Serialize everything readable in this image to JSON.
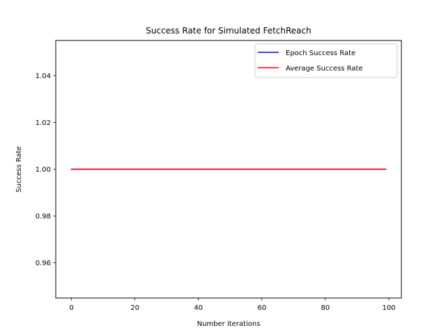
{
  "chart_data": {
    "type": "line",
    "title": "Success Rate for Simulated FetchReach",
    "xlabel": "Number iterations",
    "ylabel": "Success Rate",
    "xlim": [
      -4.95,
      103.95
    ],
    "ylim": [
      0.945,
      1.055
    ],
    "x_ticks": [
      0,
      20,
      40,
      60,
      80,
      100
    ],
    "x_tick_labels": [
      "0",
      "20",
      "40",
      "60",
      "80",
      "100"
    ],
    "y_ticks": [
      0.96,
      0.98,
      1.0,
      1.02,
      1.04
    ],
    "y_tick_labels": [
      "0.96",
      "0.98",
      "1.00",
      "1.02",
      "1.04"
    ],
    "grid": false,
    "legend_position": "top-right",
    "series": [
      {
        "name": "Epoch Success Rate",
        "color": "#0000ff",
        "x_start": 0,
        "x_end": 99,
        "value": 1.0
      },
      {
        "name": "Average Success Rate",
        "color": "#ff0000",
        "x_start": 0,
        "x_end": 99,
        "value": 1.0
      }
    ]
  }
}
